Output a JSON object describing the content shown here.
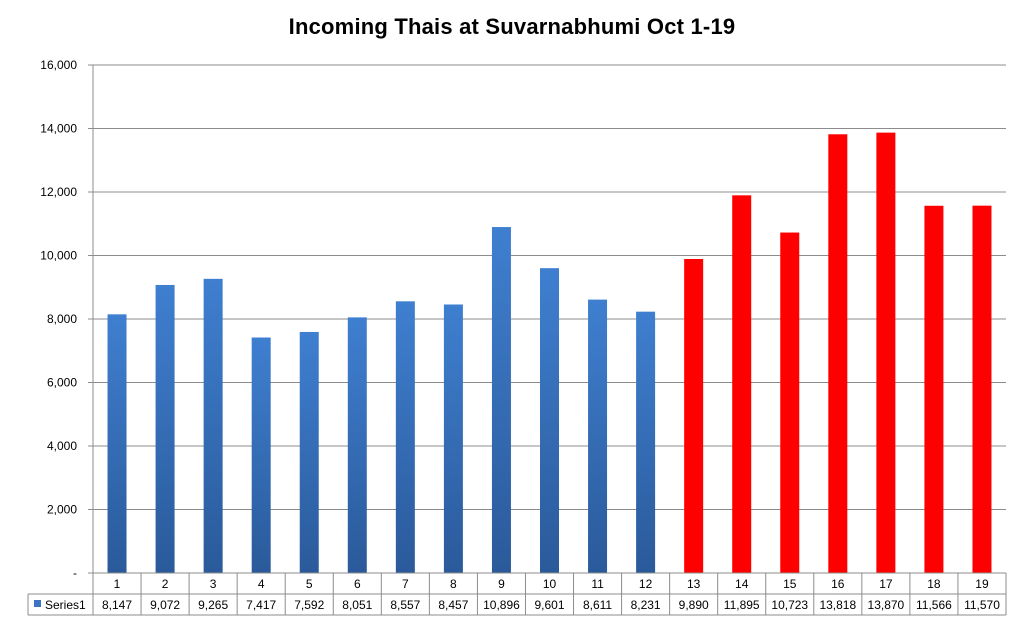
{
  "chart_data": {
    "type": "bar",
    "title": "Incoming Thais at Suvarnabhumi Oct 1-19",
    "xlabel": "",
    "ylabel": "",
    "ylim": [
      0,
      16000
    ],
    "yticks": [
      "-",
      "2,000",
      "4,000",
      "6,000",
      "8,000",
      "10,000",
      "12,000",
      "14,000",
      "16,000"
    ],
    "ytick_values": [
      0,
      2000,
      4000,
      6000,
      8000,
      10000,
      12000,
      14000,
      16000
    ],
    "grid": true,
    "legend": "data-table-left",
    "categories": [
      "1",
      "2",
      "3",
      "4",
      "5",
      "6",
      "7",
      "8",
      "9",
      "10",
      "11",
      "12",
      "13",
      "14",
      "15",
      "16",
      "17",
      "18",
      "19"
    ],
    "series": [
      {
        "name": "Series1",
        "values": [
          8147,
          9072,
          9265,
          7417,
          7592,
          8051,
          8557,
          8457,
          10896,
          9601,
          8611,
          8231,
          9890,
          11895,
          10723,
          13818,
          13870,
          11566,
          11570
        ],
        "labels": [
          "8,147",
          "9,072",
          "9,265",
          "7,417",
          "7,592",
          "8,051",
          "8,557",
          "8,457",
          "10,896",
          "9,601",
          "8,611",
          "8,231",
          "9,890",
          "11,895",
          "10,723",
          "13,818",
          "13,870",
          "11,566",
          "11,570"
        ],
        "color": "#3b75c2",
        "highlight_color": "#ff0000",
        "highlight_from_index": 12
      }
    ]
  }
}
